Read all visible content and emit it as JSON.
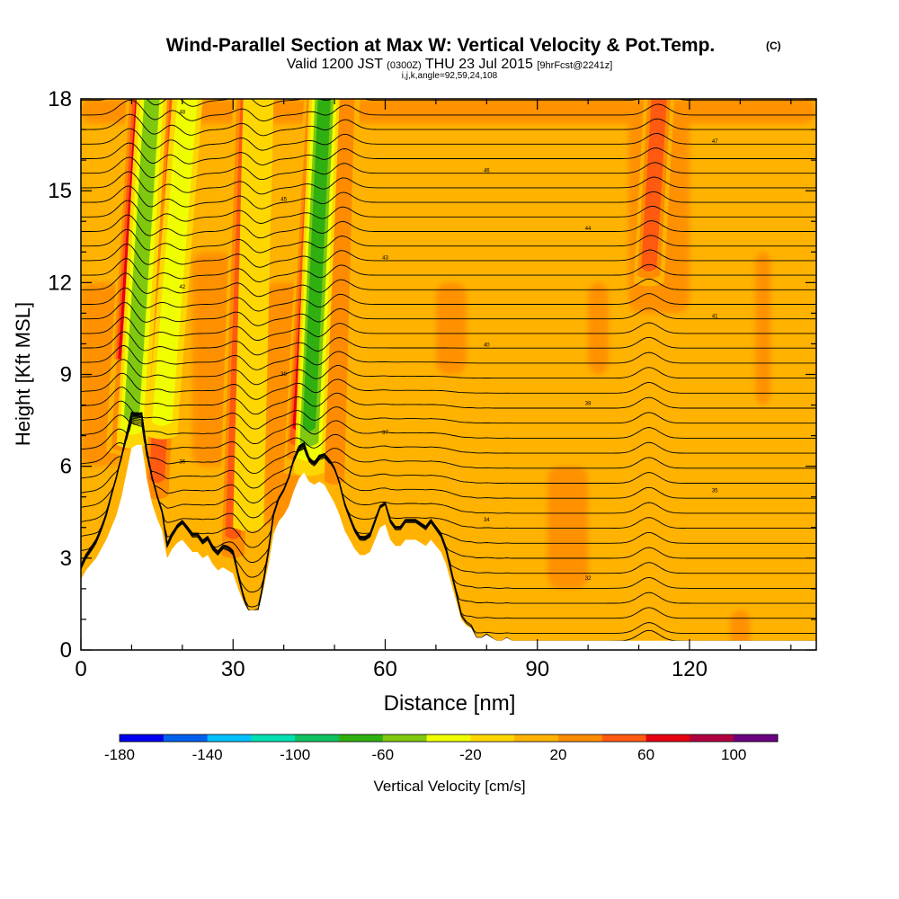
{
  "chart_data": {
    "type": "heatmap",
    "title": "Wind-Parallel Section at Max W: Vertical Velocity & Pot.Temp.",
    "title_mark": "(C)",
    "subtitle_parts": [
      "Valid 1200 JST",
      "(0300Z)",
      "THU 23 Jul 2015",
      "[9hrFcst@2241z]"
    ],
    "subtitle2": "i,j,k,angle=92,59,24,108",
    "xlabel": "Distance [nm]",
    "ylabel": "Height [Kft MSL]",
    "xlim": [
      0,
      145
    ],
    "ylim": [
      0,
      18
    ],
    "x_ticks": [
      0,
      30,
      60,
      90,
      120
    ],
    "y_ticks": [
      0,
      3,
      6,
      9,
      12,
      15,
      18
    ],
    "colorbar": {
      "label": "Vertical Velocity [cm/s]",
      "range": [
        -180,
        120
      ],
      "step": 20,
      "tick_values": [
        -180,
        -140,
        -100,
        -60,
        -20,
        20,
        60,
        100
      ],
      "tick_labels": [
        "-180",
        "-140",
        "-100",
        "-60",
        "-20",
        "20",
        "60",
        "100"
      ],
      "colors": [
        "#0000ee",
        "#0060ee",
        "#00c0ff",
        "#00e0b0",
        "#10c060",
        "#30b010",
        "#80c810",
        "#f0ff00",
        "#ffd700",
        "#ffb200",
        "#ff8c00",
        "#ff5a10",
        "#e60010",
        "#b00040",
        "#6a0080"
      ]
    },
    "terrain_profile": {
      "x": [
        0,
        1,
        2,
        3,
        4,
        5,
        6,
        7,
        8,
        9,
        10,
        11,
        12,
        13,
        14,
        15,
        16,
        17,
        18,
        19,
        20,
        21,
        22,
        23,
        24,
        25,
        26,
        27,
        28,
        29,
        30,
        31,
        32,
        33,
        34,
        35,
        36,
        37,
        38,
        39,
        40,
        41,
        42,
        43,
        44,
        45,
        46,
        47,
        48,
        49,
        50,
        51,
        52,
        53,
        54,
        55,
        56,
        57,
        58,
        59,
        60,
        61,
        62,
        63,
        64,
        65,
        66,
        67,
        68,
        69,
        70,
        71,
        72,
        73,
        74,
        75,
        76,
        77,
        78,
        79,
        80,
        81,
        82,
        83,
        84,
        85,
        86,
        87,
        88,
        89,
        90,
        145
      ],
      "y": [
        2.3,
        2.6,
        2.8,
        3.0,
        3.3,
        3.6,
        4.0,
        4.4,
        5.0,
        5.8,
        6.6,
        6.7,
        6.7,
        5.6,
        4.8,
        4.3,
        3.9,
        3.0,
        3.3,
        3.5,
        3.6,
        3.4,
        3.2,
        3.2,
        3.0,
        3.1,
        2.8,
        2.6,
        2.7,
        2.6,
        2.5,
        2.0,
        1.6,
        1.3,
        1.3,
        1.3,
        2.0,
        2.8,
        3.8,
        4.2,
        4.4,
        4.7,
        5.2,
        5.6,
        5.8,
        5.5,
        5.4,
        5.5,
        5.4,
        5.1,
        4.8,
        4.4,
        3.9,
        3.6,
        3.3,
        3.1,
        3.1,
        3.2,
        3.6,
        4.0,
        4.1,
        3.6,
        3.4,
        3.4,
        3.6,
        3.6,
        3.6,
        3.5,
        3.4,
        3.6,
        3.4,
        3.2,
        2.8,
        2.2,
        1.6,
        1.0,
        0.8,
        0.7,
        0.4,
        0.4,
        0.5,
        0.4,
        0.3,
        0.3,
        0.4,
        0.3,
        0.3,
        0.3,
        0.3,
        0.3,
        0.3,
        0.3
      ]
    },
    "updraft_bands": [
      {
        "x_top": 12,
        "x_bottom": 8,
        "y_top": 18,
        "y_bottom": 6.7,
        "value": 90
      },
      {
        "x_top": 19,
        "x_bottom": 15,
        "y_top": 18,
        "y_bottom": 4.5,
        "value": 60
      },
      {
        "x_top": 33,
        "x_bottom": 30,
        "y_top": 18,
        "y_bottom": 2.5,
        "value": 70
      },
      {
        "x_top": 47,
        "x_bottom": 43,
        "y_top": 18,
        "y_bottom": 5.8,
        "value": 90
      },
      {
        "x_top": 52,
        "x_bottom": 50,
        "y_top": 18,
        "y_bottom": 5.0,
        "value": 50
      },
      {
        "x_top": 114,
        "x_bottom": 112,
        "y_top": 18,
        "y_bottom": 12.0,
        "value": 60
      },
      {
        "x_top": 9,
        "x_bottom": 8,
        "y_top": 9.5,
        "y_bottom": 6.5,
        "value": 50
      }
    ],
    "downdraft_bands": [
      {
        "x_top": 14,
        "x_bottom": 10,
        "y_top": 18,
        "y_bottom": 6.7,
        "value": -70
      },
      {
        "x_top": 21,
        "x_bottom": 16,
        "y_top": 18,
        "y_bottom": 7.0,
        "value": -50
      },
      {
        "x_top": 48,
        "x_bottom": 45,
        "y_top": 18,
        "y_bottom": 5.8,
        "value": -80
      },
      {
        "x_top": 35,
        "x_bottom": 33,
        "y_top": 18,
        "y_bottom": 4.0,
        "value": -30
      }
    ],
    "isentrope_count": 38,
    "isentrope_labels": [
      "30",
      "31",
      "32",
      "33",
      "34",
      "35",
      "36",
      "37",
      "38",
      "39",
      "40",
      "41",
      "42",
      "43",
      "44",
      "45",
      "46",
      "47",
      "48",
      "49",
      "50",
      "51",
      "52",
      "53",
      "54",
      "55",
      "56",
      "57",
      "58",
      "59",
      "60"
    ]
  }
}
